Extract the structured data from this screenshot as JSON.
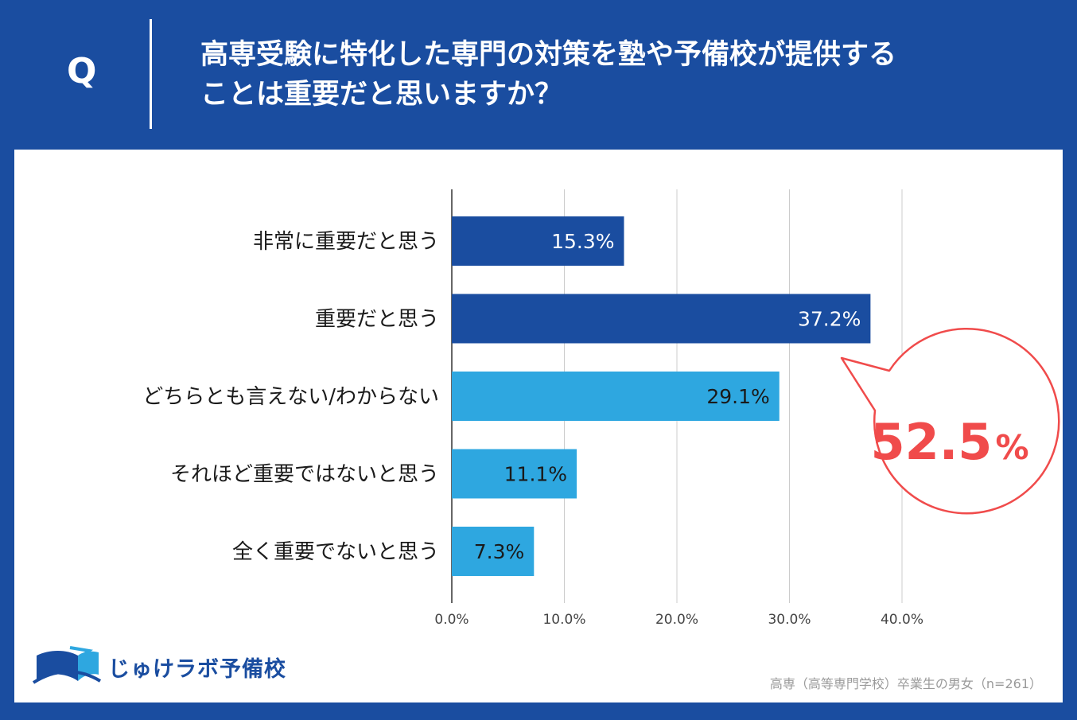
{
  "question": {
    "label": "Q",
    "line1": "高専受験に特化した専門の対策を塾や予備校が提供する",
    "line2": "ことは重要だと思いますか？"
  },
  "chart_data": {
    "type": "bar",
    "orientation": "horizontal",
    "categories": [
      "非常に重要だと思う",
      "重要だと思う",
      "どちらとも言えない/わからない",
      "それほど重要ではないと思う",
      "全く重要でないと思う"
    ],
    "values": [
      15.3,
      37.2,
      29.1,
      11.1,
      7.3
    ],
    "value_labels": [
      "15.3%",
      "37.2%",
      "29.1%",
      "11.1%",
      "7.3%"
    ],
    "bar_colors": [
      "#1a4da0",
      "#1a4da0",
      "#2ea7e0",
      "#2ea7e0",
      "#2ea7e0"
    ],
    "label_colors": [
      "#ffffff",
      "#ffffff",
      "#1a1a1a",
      "#1a1a1a",
      "#1a1a1a"
    ],
    "xlim": [
      0,
      40
    ],
    "xticks": [
      0,
      10,
      20,
      30,
      40
    ],
    "xtick_labels": [
      "0.0%",
      "10.0%",
      "20.0%",
      "30.0%",
      "40.0%"
    ],
    "grid": true,
    "annotation": {
      "text_main": "52.5",
      "text_unit": "%",
      "color": "#f04b4b"
    }
  },
  "footer": {
    "logo_text": "じゅけラボ予備校",
    "note": "高専（高等専門学校）卒業生の男女（n=261）"
  }
}
